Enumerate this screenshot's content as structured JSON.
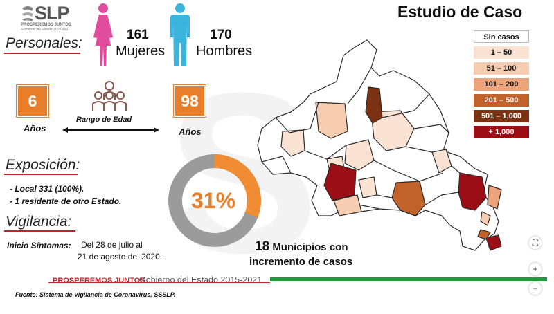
{
  "header": {
    "logo_text": "SLP",
    "logo_sub1": "PROSPEREMOS JUNTOS",
    "logo_sub2": "Gobierno del Estado 2015-2021",
    "title": "Estudio de Caso"
  },
  "personales": {
    "label": "Personales:",
    "mujeres_count": "161",
    "mujeres_label": "Mujeres",
    "hombres_count": "170",
    "hombres_label": "Hombres"
  },
  "edad": {
    "min": "6",
    "max": "98",
    "unit_min": "Años",
    "unit_max": "Años",
    "rango_label": "Rango de Edad"
  },
  "exposicion": {
    "label": "Exposición:",
    "items": [
      "- Local 331 (100%).",
      "- 1 residente de otro Estado."
    ]
  },
  "vigilancia": {
    "label": "Vigilancia:",
    "inicio_label": "Inicio Síntomas:",
    "inicio_line1": "Del 28 de julio al",
    "inicio_line2": "21 de agosto del 2020."
  },
  "donut": {
    "percent_text": "31%",
    "percent_value": 31,
    "fill_color": "#f08c34",
    "track_color": "#9b9b9b"
  },
  "municipios": {
    "count": "18",
    "line1": "Municipios con",
    "line2": "incremento de casos"
  },
  "legend": [
    {
      "label": "Sin casos",
      "color": "#ffffff"
    },
    {
      "label": "1 – 50",
      "color": "#fbe3d4"
    },
    {
      "label": "51 – 100",
      "color": "#f6cdb0"
    },
    {
      "label": "101 – 200",
      "color": "#eea47a"
    },
    {
      "label": "201 – 500",
      "color": "#c0622a"
    },
    {
      "label": "501 – 1,000",
      "color": "#7a3212"
    },
    {
      "label": "+ 1,000",
      "color": "#9b0e16"
    }
  ],
  "footer": {
    "orange_text": "PROSPEREMOS JUNTOS",
    "gray_text": "Gobierno del Estado 2015-2021",
    "fuente": "Fuente: Sistema de Vigilancia de Coronavirus, SSSLP."
  },
  "controls": {
    "fit": "⛶",
    "zoom_in": "+",
    "zoom_out": "−"
  }
}
